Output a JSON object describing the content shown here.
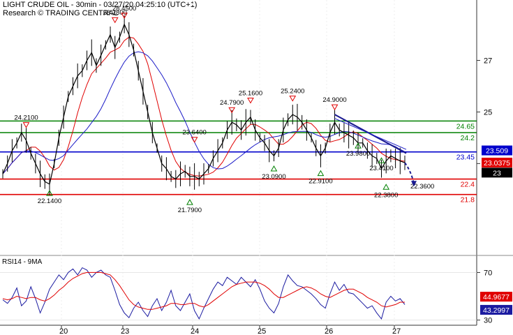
{
  "header": {
    "title": "LIGHT CRUDE OIL - 30min - 03/27/20 04:25:10 (UTC+1)",
    "source": "Research © TRADING CENTRAL"
  },
  "colors": {
    "support": "#e00000",
    "resistance": "#008000",
    "pivot": "#0000cc",
    "price": "#000000",
    "ma_fast": "#e00000",
    "ma_slow": "#1c1cc8",
    "rsi": "#1a1aa0",
    "rsi_ma": "#e00000",
    "trendline": "#1a1a90"
  },
  "chart_data": [
    {
      "type": "line",
      "name": "price",
      "x_ticks": [
        "20",
        "23",
        "24",
        "25",
        "26",
        "27"
      ],
      "y_ticks": [
        23,
        25,
        27
      ],
      "ylim": [
        19.6,
        28.8
      ],
      "closes": [
        22.6,
        23.0,
        23.5,
        23.8,
        24.2,
        23.9,
        23.4,
        23.0,
        22.6,
        22.3,
        22.2,
        23.0,
        24.0,
        24.8,
        25.6,
        26.0,
        26.4,
        26.6,
        27.0,
        27.3,
        26.8,
        27.2,
        27.6,
        28.0,
        27.5,
        27.9,
        28.4,
        28.0,
        27.4,
        26.6,
        25.8,
        25.0,
        24.2,
        23.6,
        23.0,
        22.8,
        22.5,
        22.4,
        22.6,
        22.7,
        22.5,
        22.5,
        22.4,
        22.6,
        22.8,
        23.2,
        23.5,
        23.8,
        24.3,
        24.6,
        24.5,
        24.3,
        24.6,
        24.8,
        24.3,
        24.0,
        23.8,
        23.5,
        23.3,
        23.6,
        24.3,
        24.7,
        24.9,
        24.8,
        24.6,
        24.3,
        24.0,
        23.6,
        23.3,
        23.6,
        24.2,
        24.6,
        24.3,
        24.2,
        24.1,
        24.0,
        23.8,
        23.8,
        23.5,
        23.3,
        23.2,
        22.8,
        23.1,
        23.3,
        23.2,
        23.1,
        23.03
      ],
      "series": [
        {
          "name": "MA fast",
          "values": []
        },
        {
          "name": "MA slow",
          "values": []
        }
      ],
      "swing_labels": [
        {
          "text": "28.2800",
          "value": 28.28,
          "kind": "high"
        },
        {
          "text": "28.4500",
          "value": 28.45,
          "kind": "high"
        },
        {
          "text": "24.2100",
          "value": 24.21,
          "kind": "high"
        },
        {
          "text": "23.6400",
          "value": 23.64,
          "kind": "high"
        },
        {
          "text": "24.7900",
          "value": 24.79,
          "kind": "high"
        },
        {
          "text": "25.1600",
          "value": 25.16,
          "kind": "high"
        },
        {
          "text": "25.2400",
          "value": 25.24,
          "kind": "high"
        },
        {
          "text": "24.9000",
          "value": 24.9,
          "kind": "high"
        },
        {
          "text": "23.9800",
          "value": 23.98,
          "kind": "low"
        },
        {
          "text": "23.0900",
          "value": 23.09,
          "kind": "low"
        },
        {
          "text": "22.9100",
          "value": 22.91,
          "kind": "low"
        },
        {
          "text": "23.4100",
          "value": 23.41,
          "kind": "low"
        },
        {
          "text": "22.1400",
          "value": 22.14,
          "kind": "low"
        },
        {
          "text": "21.7900",
          "value": 21.79,
          "kind": "low"
        },
        {
          "text": "22.3800",
          "value": 22.38,
          "kind": "low"
        },
        {
          "text": "22.3600",
          "value": 22.36,
          "kind": "target"
        }
      ],
      "levels": [
        {
          "label": "24.65",
          "value": 24.65,
          "kind": "resistance"
        },
        {
          "label": "24.2",
          "value": 24.2,
          "kind": "resistance"
        },
        {
          "label": "23.45",
          "value": 23.45,
          "kind": "pivot"
        },
        {
          "label": "22.4",
          "value": 22.4,
          "kind": "support"
        },
        {
          "label": "21.8",
          "value": 21.8,
          "kind": "support"
        }
      ],
      "price_tags": [
        {
          "label": "23.509",
          "value": 23.509,
          "kind": "pivot"
        },
        {
          "label": "23.0375",
          "value": 23.0375,
          "kind": "ma"
        },
        {
          "label": "23",
          "value": 23.0,
          "kind": "last"
        }
      ]
    },
    {
      "type": "line",
      "name": "RSI14 - 9MA",
      "title": "RSI14 - 9MA",
      "y_ticks": [
        30,
        70
      ],
      "ylim": [
        28,
        82
      ],
      "series": [
        {
          "name": "RSI14",
          "values": [
            47,
            44,
            49,
            57,
            42,
            46,
            58,
            48,
            36,
            45,
            56,
            62,
            68,
            64,
            70,
            73,
            68,
            74,
            72,
            66,
            70,
            72,
            68,
            66,
            55,
            43,
            36,
            32,
            40,
            45,
            38,
            33,
            42,
            48,
            38,
            45,
            55,
            42,
            38,
            45,
            52,
            38,
            31,
            40,
            48,
            56,
            62,
            59,
            66,
            63,
            60,
            66,
            62,
            58,
            64,
            56,
            46,
            40,
            36,
            44,
            58,
            68,
            63,
            59,
            58,
            55,
            52,
            48,
            43,
            40,
            52,
            62,
            55,
            60,
            53,
            52,
            48,
            44,
            40,
            42,
            36,
            31,
            45,
            50,
            46,
            48,
            43
          ]
        },
        {
          "name": "MA",
          "values": [
            48,
            47,
            48,
            50,
            49,
            48,
            49,
            49,
            47,
            46,
            48,
            51,
            55,
            58,
            62,
            65,
            67,
            69,
            70,
            70,
            70,
            70,
            69,
            68,
            64,
            59,
            53,
            47,
            43,
            41,
            40,
            39,
            39,
            40,
            41,
            42,
            44,
            44,
            43,
            43,
            44,
            44,
            42,
            41,
            43,
            46,
            49,
            52,
            55,
            58,
            60,
            61,
            62,
            62,
            62,
            61,
            59,
            56,
            52,
            49,
            49,
            51,
            53,
            55,
            57,
            58,
            57,
            55,
            52,
            50,
            49,
            51,
            53,
            55,
            56,
            56,
            54,
            52,
            49,
            47,
            45,
            42,
            41,
            42,
            43,
            45,
            45
          ]
        }
      ],
      "price_tags": [
        {
          "label": "44.9677",
          "value": 44.9677,
          "kind": "ma"
        },
        {
          "label": "43.2997",
          "value": 43.2997,
          "kind": "rsi"
        }
      ]
    }
  ]
}
